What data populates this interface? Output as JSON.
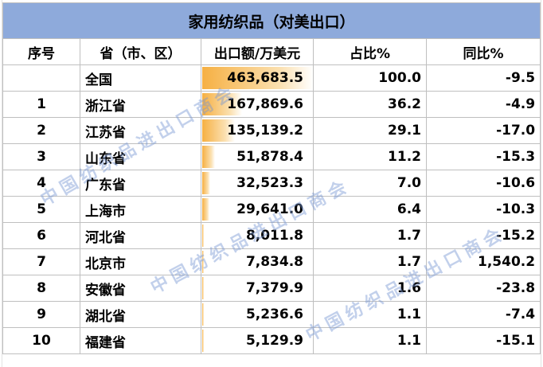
{
  "title": "家用纺织品（对美出口）",
  "headers": [
    "序号",
    "省（市、区）",
    "出口额/万美元",
    "占比%",
    "同比%"
  ],
  "watermark": "中国纺织品进出口商会",
  "colors": {
    "title_bg": "#8eaadb",
    "bar": "#f6b043"
  },
  "chart_data": {
    "type": "table",
    "title": "家用纺织品（对美出口）",
    "columns": [
      "序号",
      "省（市、区）",
      "出口额/万美元",
      "占比%",
      "同比%"
    ],
    "rows": [
      {
        "rank": "",
        "region": "全国",
        "export": "463,683.5",
        "export_value": 463683.5,
        "share": "100.0",
        "yoy": "-9.5"
      },
      {
        "rank": "1",
        "region": "浙江省",
        "export": "167,869.6",
        "export_value": 167869.6,
        "share": "36.2",
        "yoy": "-4.9"
      },
      {
        "rank": "2",
        "region": "江苏省",
        "export": "135,139.2",
        "export_value": 135139.2,
        "share": "29.1",
        "yoy": "-17.0"
      },
      {
        "rank": "3",
        "region": "山东省",
        "export": "51,878.4",
        "export_value": 51878.4,
        "share": "11.2",
        "yoy": "-15.3"
      },
      {
        "rank": "4",
        "region": "广东省",
        "export": "32,523.3",
        "export_value": 32523.3,
        "share": "7.0",
        "yoy": "-10.6"
      },
      {
        "rank": "5",
        "region": "上海市",
        "export": "29,641.0",
        "export_value": 29641.0,
        "share": "6.4",
        "yoy": "-10.3"
      },
      {
        "rank": "6",
        "region": "河北省",
        "export": "8,011.8",
        "export_value": 8011.8,
        "share": "1.7",
        "yoy": "-15.2"
      },
      {
        "rank": "7",
        "region": "北京市",
        "export": "7,834.8",
        "export_value": 7834.8,
        "share": "1.7",
        "yoy": "1,540.2"
      },
      {
        "rank": "8",
        "region": "安徽省",
        "export": "7,379.9",
        "export_value": 7379.9,
        "share": "1.6",
        "yoy": "-23.8"
      },
      {
        "rank": "9",
        "region": "湖北省",
        "export": "5,236.6",
        "export_value": 5236.6,
        "share": "1.1",
        "yoy": "-7.4"
      },
      {
        "rank": "10",
        "region": "福建省",
        "export": "5,129.9",
        "export_value": 5129.9,
        "share": "1.1",
        "yoy": "-15.1"
      }
    ]
  }
}
